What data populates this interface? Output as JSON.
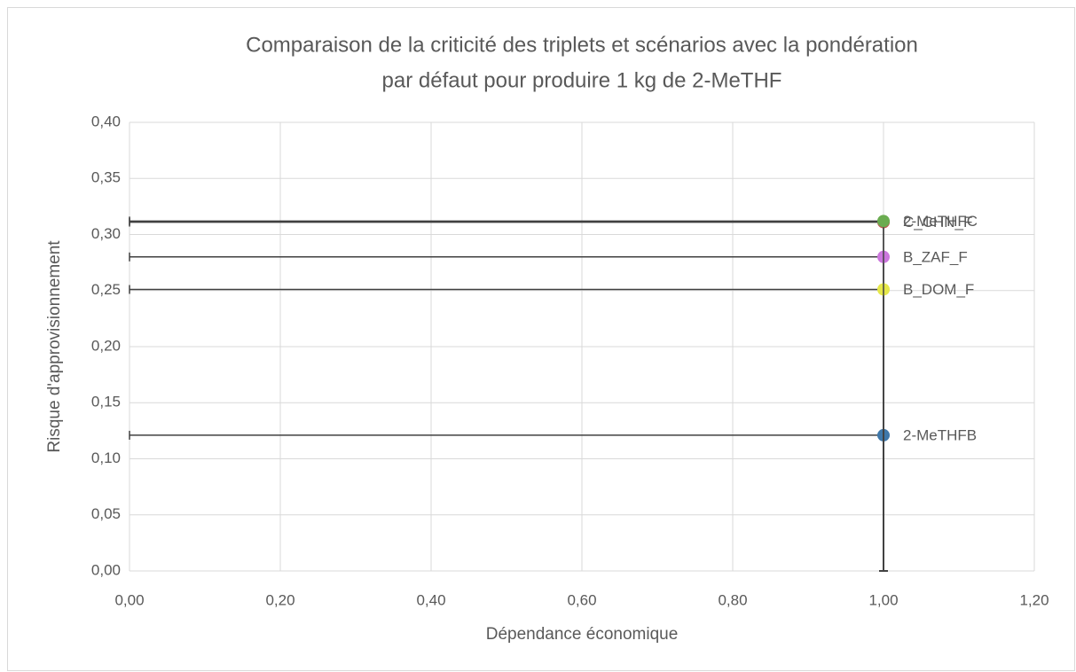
{
  "chart_data": {
    "type": "scatter",
    "title": [
      "Comparaison de la criticité des triplets et scénarios avec la pondération",
      "par défaut pour produire 1 kg de 2-MeTHF"
    ],
    "x_label": "Dépendance économique",
    "y_label": "Risque d'approvisionnement",
    "xlim": [
      0,
      1.2
    ],
    "ylim": [
      0,
      0.4
    ],
    "xticks": [
      {
        "value": 0,
        "label": "0,00"
      },
      {
        "value": 0.2,
        "label": "0,20"
      },
      {
        "value": 0.4,
        "label": "0,40"
      },
      {
        "value": 0.6,
        "label": "0,60"
      },
      {
        "value": 0.8,
        "label": "0,80"
      },
      {
        "value": 1,
        "label": "1,00"
      },
      {
        "value": 1.2,
        "label": "1,20"
      }
    ],
    "yticks": [
      {
        "value": 0,
        "label": "0,00"
      },
      {
        "value": 0.05,
        "label": "0,05"
      },
      {
        "value": 0.1,
        "label": "0,10"
      },
      {
        "value": 0.15,
        "label": "0,15"
      },
      {
        "value": 0.2,
        "label": "0,20"
      },
      {
        "value": 0.25,
        "label": "0,25"
      },
      {
        "value": 0.3,
        "label": "0,30"
      },
      {
        "value": 0.35,
        "label": "0,35"
      },
      {
        "value": 0.4,
        "label": "0,40"
      }
    ],
    "grid": true,
    "series": [
      {
        "name": "2-MeTHFB",
        "color": "#3f78aa",
        "x": [
          1
        ],
        "values": [
          0.121
        ],
        "x_error": [
          1
        ],
        "y_error": [
          0.121
        ]
      },
      {
        "name": "C_CHN_F",
        "color": "#c0504d",
        "x": [
          1
        ],
        "values": [
          0.311
        ],
        "x_error": [
          1
        ],
        "y_error": [
          0.311
        ]
      },
      {
        "name": "B_ZAF_F",
        "color": "#cc77dd",
        "x": [
          1
        ],
        "values": [
          0.28
        ],
        "x_error": [
          1
        ],
        "y_error": [
          0.28
        ]
      },
      {
        "name": "B_DOM_F",
        "color": "#e6e84a",
        "x": [
          1
        ],
        "values": [
          0.251
        ],
        "x_error": [
          1
        ],
        "y_error": [
          0.251
        ]
      },
      {
        "name": "2-MeTHFC",
        "color": "#6aac50",
        "x": [
          1
        ],
        "values": [
          0.312
        ],
        "x_error": [
          1
        ],
        "y_error": [
          0.312
        ]
      }
    ]
  }
}
